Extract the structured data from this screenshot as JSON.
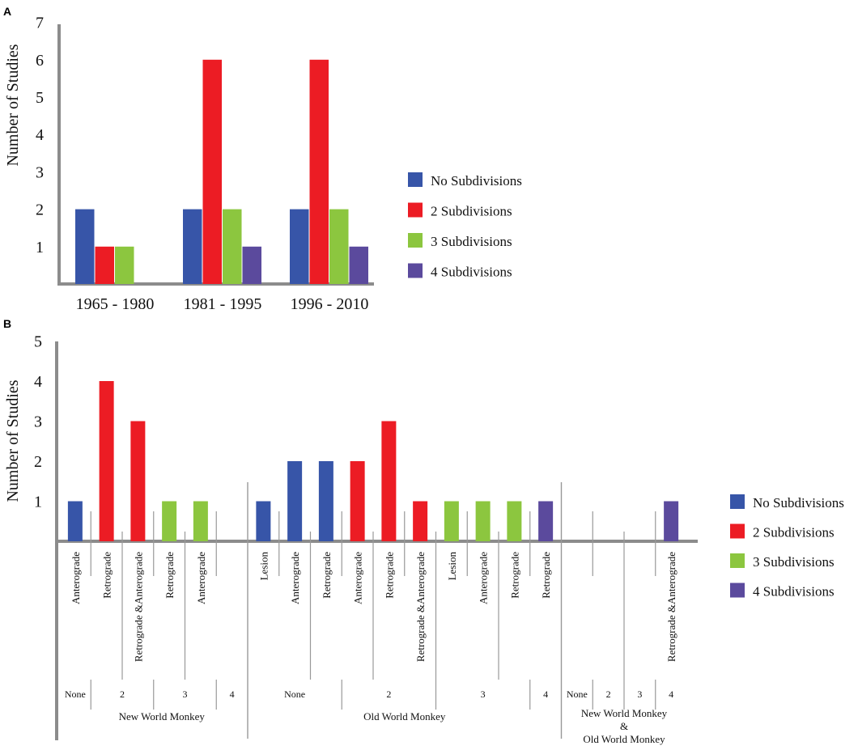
{
  "colors": {
    "No Subdivisions": "#3755a8",
    "2 Subdivisions": "#ec1c24",
    "3 Subdivisions": "#8cc63f",
    "4 Subdivisions": "#5b4a9d",
    "axis": "#8c8c8c"
  },
  "chart_data": [
    {
      "panel": "A",
      "type": "bar",
      "ylabel": "Number of Studies",
      "ylim": [
        0,
        7
      ],
      "yticks": [
        "1",
        "2",
        "3",
        "4",
        "5",
        "6",
        "7"
      ],
      "categories": [
        "1965 - 1980",
        "1981 - 1995",
        "1996 - 2010"
      ],
      "series": [
        {
          "name": "No Subdivisions",
          "values": [
            2,
            2,
            2
          ]
        },
        {
          "name": "2 Subdivisions",
          "values": [
            1,
            6,
            6
          ]
        },
        {
          "name": "3 Subdivisions",
          "values": [
            1,
            2,
            2
          ]
        },
        {
          "name": "4 Subdivisions",
          "values": [
            0,
            1,
            1
          ]
        }
      ],
      "legend": [
        "No Subdivisions",
        "2 Subdivisions",
        "3 Subdivisions",
        "4 Subdivisions"
      ]
    },
    {
      "panel": "B",
      "type": "bar",
      "ylabel": "Number of Studies",
      "ylim": [
        0,
        5
      ],
      "yticks": [
        "1",
        "2",
        "3",
        "4",
        "5"
      ],
      "bars": [
        {
          "label": "Anterograde",
          "series": "No Subdivisions",
          "value": 1
        },
        {
          "label": "Retrograde",
          "series": "2 Subdivisions",
          "value": 4
        },
        {
          "label": "Retrograde &Anterograde",
          "series": "2 Subdivisions",
          "value": 3
        },
        {
          "label": "Retrograde",
          "series": "3 Subdivisions",
          "value": 1
        },
        {
          "label": "Anterograde",
          "series": "3 Subdivisions",
          "value": 1
        },
        {
          "label": "",
          "series": "4 Subdivisions",
          "value": 0
        },
        {
          "label": "Lesion",
          "series": "No Subdivisions",
          "value": 1
        },
        {
          "label": "Anterograde",
          "series": "No Subdivisions",
          "value": 2
        },
        {
          "label": "Retrograde",
          "series": "No Subdivisions",
          "value": 2
        },
        {
          "label": "Anterograde",
          "series": "2 Subdivisions",
          "value": 2
        },
        {
          "label": "Retrograde",
          "series": "2 Subdivisions",
          "value": 3
        },
        {
          "label": "Retrograde &Anterograde",
          "series": "2 Subdivisions",
          "value": 1
        },
        {
          "label": "Lesion",
          "series": "3 Subdivisions",
          "value": 1
        },
        {
          "label": "Anterograde",
          "series": "3 Subdivisions",
          "value": 1
        },
        {
          "label": "Retrograde",
          "series": "3 Subdivisions",
          "value": 1
        },
        {
          "label": "Retrograde",
          "series": "4 Subdivisions",
          "value": 1
        },
        {
          "label": "",
          "series": "No Subdivisions",
          "value": 0
        },
        {
          "label": "",
          "series": "2 Subdivisions",
          "value": 0
        },
        {
          "label": "",
          "series": "3 Subdivisions",
          "value": 0
        },
        {
          "label": "Retrograde &Anterograde",
          "series": "4 Subdivisions",
          "value": 1
        }
      ],
      "subdivision_groups": [
        "None",
        "2",
        "3",
        "4",
        "None",
        "2",
        "3",
        "4",
        "None",
        "2",
        "3",
        "4"
      ],
      "species_groups": [
        "New World Monkey",
        "Old World Monkey",
        "New World Monkey & Old World Monkey"
      ],
      "legend": [
        "No Subdivisions",
        "2 Subdivisions",
        "3 Subdivisions",
        "4 Subdivisions"
      ]
    }
  ]
}
